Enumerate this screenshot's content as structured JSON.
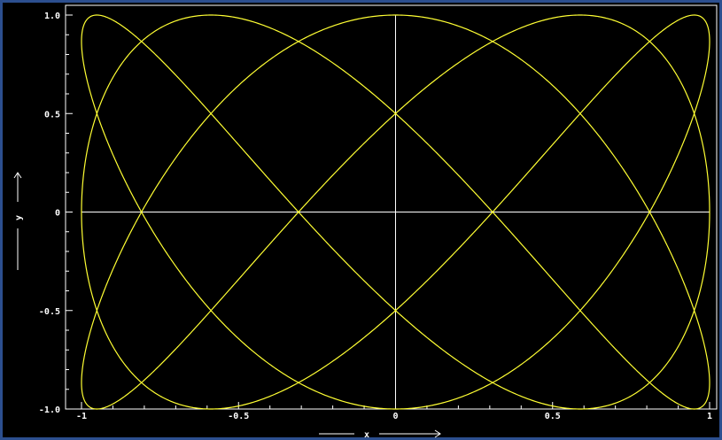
{
  "chart_data": {
    "type": "line",
    "title": "",
    "xlabel": "x",
    "ylabel": "y",
    "xlim": [
      -1,
      1
    ],
    "ylim": [
      -1,
      1
    ],
    "x_ticks": [
      -1,
      -0.5,
      0,
      0.5,
      1
    ],
    "x_tick_labels": [
      "-1",
      "-0.5",
      "0",
      "0.5",
      "1"
    ],
    "y_ticks": [
      -1,
      -0.5,
      0,
      0.5,
      1
    ],
    "y_tick_labels": [
      "-1.0",
      "-0.5",
      "0",
      "0.5",
      "1.0"
    ],
    "grid": false,
    "zero_lines": true,
    "series": [
      {
        "curve": "parametric",
        "x_expression": "sin(3t)",
        "y_expression": "cos(5t)",
        "t_range": [
          0,
          6.283185
        ],
        "color": "#ffff33"
      }
    ],
    "background": "#000000",
    "axis_color": "#ffffff",
    "frame_color": "#2c4f8f"
  }
}
